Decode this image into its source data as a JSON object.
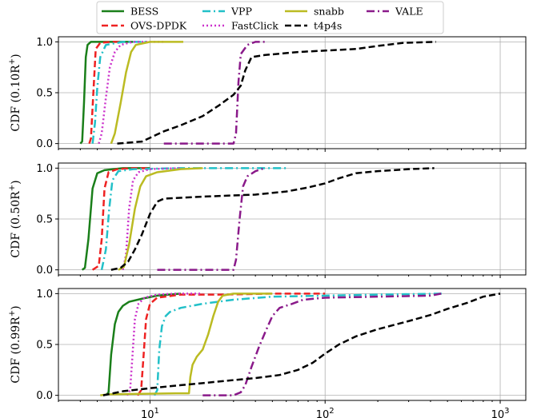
{
  "chart_data": {
    "type": "line",
    "x_scale": "log",
    "xlim": [
      3,
      1400
    ],
    "ylim": [
      -0.05,
      1.05
    ],
    "grid": true,
    "legend_position": "top-center",
    "x_ticks": [
      {
        "base": "10",
        "exp": "1"
      },
      {
        "base": "10",
        "exp": "2"
      },
      {
        "base": "10",
        "exp": "3"
      }
    ],
    "y_ticks": [
      "0.0",
      "0.5",
      "1.0"
    ],
    "y_tick_values": [
      0,
      0.5,
      1
    ],
    "colors": {
      "BESS": "#1a7f1a",
      "OVS-DPDK": "#ee2222",
      "VPP": "#22c0c8",
      "FastClick": "#cc33cc",
      "snabb": "#bbbb22",
      "t4p4s": "#000000",
      "VALE": "#8a1a8a"
    },
    "legend": [
      "BESS",
      "OVS-DPDK",
      "VPP",
      "FastClick",
      "snabb",
      "VALE",
      "t4p4s"
    ],
    "panels": [
      {
        "ylabel": "CDF (0.10R",
        "ylabel_sup": "+",
        "ylabel_end": ")",
        "series": [
          {
            "name": "BESS",
            "points": [
              [
                4,
                0
              ],
              [
                4.1,
                0.02
              ],
              [
                4.2,
                0.4
              ],
              [
                4.3,
                0.85
              ],
              [
                4.4,
                0.97
              ],
              [
                4.6,
                1.0
              ],
              [
                8,
                1.0
              ]
            ]
          },
          {
            "name": "OVS-DPDK",
            "points": [
              [
                4.5,
                0
              ],
              [
                4.6,
                0.05
              ],
              [
                4.75,
                0.5
              ],
              [
                4.9,
                0.93
              ],
              [
                5.2,
                0.99
              ],
              [
                6,
                1.0
              ],
              [
                7,
                1.0
              ]
            ]
          },
          {
            "name": "VPP",
            "points": [
              [
                4.7,
                0
              ],
              [
                4.85,
                0.2
              ],
              [
                5,
                0.55
              ],
              [
                5.2,
                0.85
              ],
              [
                5.6,
                0.97
              ],
              [
                7,
                1.0
              ],
              [
                10,
                1.0
              ]
            ]
          },
          {
            "name": "FastClick",
            "points": [
              [
                5.1,
                0
              ],
              [
                5.3,
                0.1
              ],
              [
                5.6,
                0.45
              ],
              [
                5.9,
                0.75
              ],
              [
                6.3,
                0.9
              ],
              [
                6.8,
                0.97
              ],
              [
                8,
                1.0
              ],
              [
                12,
                1.0
              ]
            ]
          },
          {
            "name": "snabb",
            "points": [
              [
                6,
                0
              ],
              [
                6.3,
                0.1
              ],
              [
                6.8,
                0.4
              ],
              [
                7.3,
                0.7
              ],
              [
                7.8,
                0.9
              ],
              [
                8.3,
                0.97
              ],
              [
                10,
                1.0
              ],
              [
                15.5,
                1.0
              ]
            ]
          },
          {
            "name": "VALE",
            "points": [
              [
                12,
                0
              ],
              [
                30,
                0
              ],
              [
                31,
                0.1
              ],
              [
                32,
                0.6
              ],
              [
                33,
                0.88
              ],
              [
                36,
                0.97
              ],
              [
                40,
                1.0
              ],
              [
                47,
                1.0
              ]
            ]
          },
          {
            "name": "t4p4s",
            "points": [
              [
                6.5,
                0
              ],
              [
                9,
                0.02
              ],
              [
                12,
                0.12
              ],
              [
                15,
                0.18
              ],
              [
                20,
                0.27
              ],
              [
                25,
                0.38
              ],
              [
                30,
                0.48
              ],
              [
                33,
                0.57
              ],
              [
                35,
                0.72
              ],
              [
                38,
                0.85
              ],
              [
                45,
                0.87
              ],
              [
                70,
                0.9
              ],
              [
                150,
                0.93
              ],
              [
                200,
                0.96
              ],
              [
                280,
                0.99
              ],
              [
                430,
                1.0
              ]
            ]
          }
        ]
      },
      {
        "ylabel": "CDF (0.50R",
        "ylabel_sup": "+",
        "ylabel_end": ")",
        "series": [
          {
            "name": "BESS",
            "points": [
              [
                4.1,
                0
              ],
              [
                4.25,
                0.02
              ],
              [
                4.45,
                0.3
              ],
              [
                4.7,
                0.8
              ],
              [
                5,
                0.95
              ],
              [
                5.5,
                0.98
              ],
              [
                7,
                1.0
              ],
              [
                10,
                1.0
              ]
            ]
          },
          {
            "name": "OVS-DPDK",
            "points": [
              [
                4.7,
                0
              ],
              [
                5.1,
                0.04
              ],
              [
                5.3,
                0.3
              ],
              [
                5.5,
                0.8
              ],
              [
                5.8,
                0.96
              ],
              [
                6.5,
                0.99
              ],
              [
                8,
                1.0
              ],
              [
                10,
                1.0
              ]
            ]
          },
          {
            "name": "VPP",
            "points": [
              [
                5.3,
                0
              ],
              [
                5.6,
                0.2
              ],
              [
                5.85,
                0.6
              ],
              [
                6.1,
                0.88
              ],
              [
                6.6,
                0.97
              ],
              [
                8,
                0.99
              ],
              [
                15,
                1.0
              ],
              [
                60,
                1.0
              ]
            ]
          },
          {
            "name": "FastClick",
            "points": [
              [
                7,
                0
              ],
              [
                7.3,
                0.15
              ],
              [
                7.6,
                0.6
              ],
              [
                8,
                0.88
              ],
              [
                8.6,
                0.96
              ],
              [
                10,
                0.99
              ],
              [
                15,
                1.0
              ]
            ]
          },
          {
            "name": "snabb",
            "points": [
              [
                6.6,
                0
              ],
              [
                7.1,
                0.03
              ],
              [
                7.6,
                0.25
              ],
              [
                8.2,
                0.6
              ],
              [
                8.8,
                0.82
              ],
              [
                9.5,
                0.92
              ],
              [
                11,
                0.96
              ],
              [
                15,
                0.99
              ],
              [
                20,
                1.0
              ]
            ]
          },
          {
            "name": "VALE",
            "points": [
              [
                11,
                0
              ],
              [
                30,
                0
              ],
              [
                31,
                0.1
              ],
              [
                32.5,
                0.5
              ],
              [
                34,
                0.82
              ],
              [
                36,
                0.92
              ],
              [
                40,
                0.97
              ],
              [
                45,
                1.0
              ]
            ]
          },
          {
            "name": "t4p4s",
            "points": [
              [
                6,
                0
              ],
              [
                6.8,
                0.02
              ],
              [
                7.5,
                0.08
              ],
              [
                8.2,
                0.2
              ],
              [
                9,
                0.35
              ],
              [
                10,
                0.55
              ],
              [
                11,
                0.67
              ],
              [
                12,
                0.7
              ],
              [
                20,
                0.72
              ],
              [
                40,
                0.74
              ],
              [
                60,
                0.77
              ],
              [
                80,
                0.81
              ],
              [
                100,
                0.85
              ],
              [
                120,
                0.9
              ],
              [
                150,
                0.95
              ],
              [
                200,
                0.97
              ],
              [
                300,
                0.99
              ],
              [
                420,
                1.0
              ]
            ]
          }
        ]
      },
      {
        "ylabel": "CDF (0.99R",
        "ylabel_sup": "+",
        "ylabel_end": ")",
        "series": [
          {
            "name": "BESS",
            "points": [
              [
                5.6,
                0
              ],
              [
                5.8,
                0.03
              ],
              [
                6,
                0.4
              ],
              [
                6.3,
                0.7
              ],
              [
                6.6,
                0.82
              ],
              [
                7,
                0.88
              ],
              [
                7.6,
                0.92
              ],
              [
                9,
                0.95
              ],
              [
                11,
                0.98
              ],
              [
                15,
                1.0
              ]
            ]
          },
          {
            "name": "OVS-DPDK",
            "points": [
              [
                8.5,
                0
              ],
              [
                8.9,
                0.05
              ],
              [
                9.2,
                0.4
              ],
              [
                9.5,
                0.75
              ],
              [
                10,
                0.9
              ],
              [
                11,
                0.96
              ],
              [
                15,
                0.99
              ],
              [
                25,
                0.99
              ],
              [
                50,
                1.0
              ],
              [
                100,
                1.0
              ]
            ]
          },
          {
            "name": "VPP",
            "points": [
              [
                10.6,
                0
              ],
              [
                11,
                0.05
              ],
              [
                11.3,
                0.45
              ],
              [
                11.7,
                0.68
              ],
              [
                12.3,
                0.78
              ],
              [
                13,
                0.82
              ],
              [
                15,
                0.86
              ],
              [
                20,
                0.9
              ],
              [
                30,
                0.94
              ],
              [
                50,
                0.97
              ],
              [
                100,
                0.98
              ],
              [
                200,
                0.99
              ],
              [
                470,
                1.0
              ]
            ]
          },
          {
            "name": "FastClick",
            "points": [
              [
                7.4,
                0
              ],
              [
                7.7,
                0.05
              ],
              [
                7.95,
                0.4
              ],
              [
                8.2,
                0.75
              ],
              [
                8.6,
                0.9
              ],
              [
                9.3,
                0.96
              ],
              [
                11,
                0.99
              ],
              [
                14,
                1.0
              ],
              [
                20,
                1.0
              ]
            ]
          },
          {
            "name": "snabb",
            "points": [
              [
                5.2,
                0
              ],
              [
                5.8,
                0.01
              ],
              [
                14,
                0.02
              ],
              [
                16.7,
                0.02
              ],
              [
                17,
                0.18
              ],
              [
                17.5,
                0.3
              ],
              [
                18.5,
                0.38
              ],
              [
                20,
                0.45
              ],
              [
                21.5,
                0.6
              ],
              [
                23,
                0.78
              ],
              [
                24.5,
                0.92
              ],
              [
                26,
                0.98
              ],
              [
                30,
                1.0
              ],
              [
                50,
                1.0
              ]
            ]
          },
          {
            "name": "VALE",
            "points": [
              [
                20,
                0
              ],
              [
                30,
                0
              ],
              [
                33,
                0.03
              ],
              [
                35,
                0.1
              ],
              [
                38,
                0.28
              ],
              [
                42,
                0.48
              ],
              [
                46,
                0.64
              ],
              [
                50,
                0.78
              ],
              [
                55,
                0.86
              ],
              [
                65,
                0.9
              ],
              [
                75,
                0.94
              ],
              [
                100,
                0.96
              ],
              [
                200,
                0.97
              ],
              [
                400,
                0.98
              ],
              [
                460,
                1.0
              ]
            ]
          },
          {
            "name": "t4p4s",
            "points": [
              [
                5.4,
                0
              ],
              [
                7,
                0.04
              ],
              [
                10,
                0.07
              ],
              [
                15,
                0.1
              ],
              [
                20,
                0.12
              ],
              [
                30,
                0.15
              ],
              [
                40,
                0.17
              ],
              [
                55,
                0.2
              ],
              [
                70,
                0.25
              ],
              [
                85,
                0.32
              ],
              [
                100,
                0.41
              ],
              [
                120,
                0.5
              ],
              [
                150,
                0.58
              ],
              [
                200,
                0.65
              ],
              [
                300,
                0.73
              ],
              [
                400,
                0.79
              ],
              [
                500,
                0.85
              ],
              [
                650,
                0.91
              ],
              [
                800,
                0.97
              ],
              [
                1000,
                1.0
              ]
            ]
          }
        ]
      }
    ]
  }
}
